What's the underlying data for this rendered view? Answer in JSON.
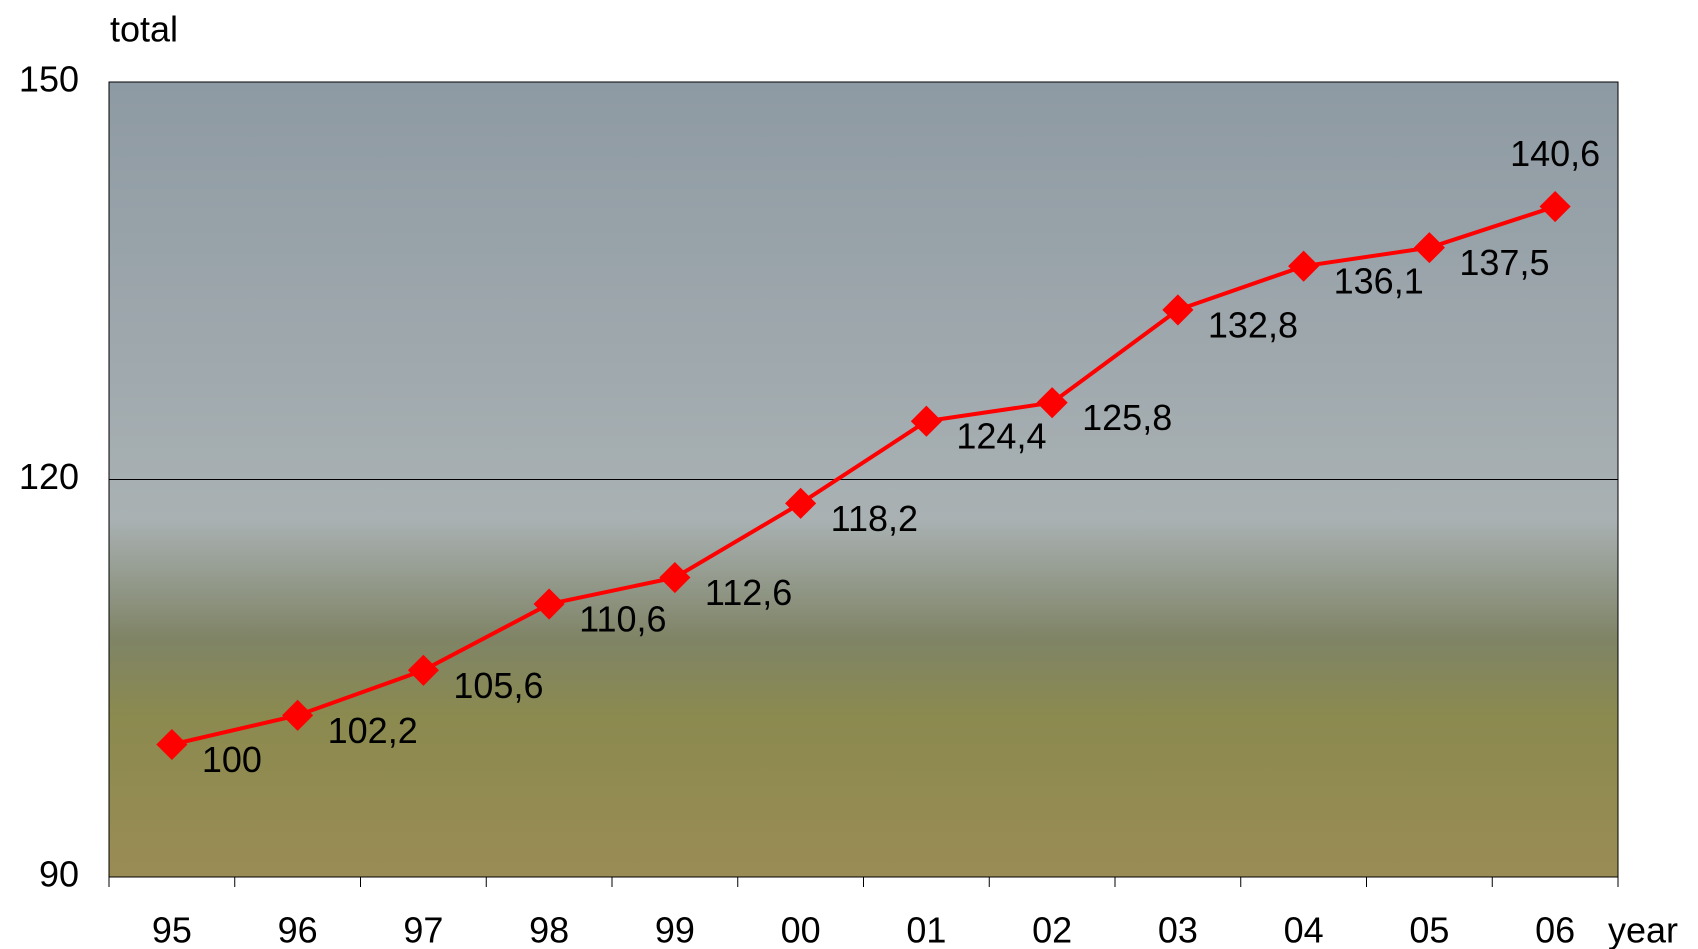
{
  "chart_data": {
    "type": "line",
    "y_label": "total",
    "x_label": "year",
    "categories": [
      "95",
      "96",
      "97",
      "98",
      "99",
      "00",
      "01",
      "02",
      "03",
      "04",
      "05",
      "06"
    ],
    "series": [
      {
        "name": "total",
        "color": "#ff0000",
        "values": [
          100,
          102.2,
          105.6,
          110.6,
          112.6,
          118.2,
          124.4,
          125.8,
          132.8,
          136.1,
          137.5,
          140.6
        ],
        "value_labels": [
          "100",
          "102,2",
          "105,6",
          "110,6",
          "112,6",
          "118,2",
          "124,4",
          "125,8",
          "132,8",
          "136,1",
          "137,5",
          "140,6"
        ]
      }
    ],
    "ylim": [
      90,
      150
    ],
    "yticks": [
      90,
      120,
      150
    ],
    "grid": true
  }
}
